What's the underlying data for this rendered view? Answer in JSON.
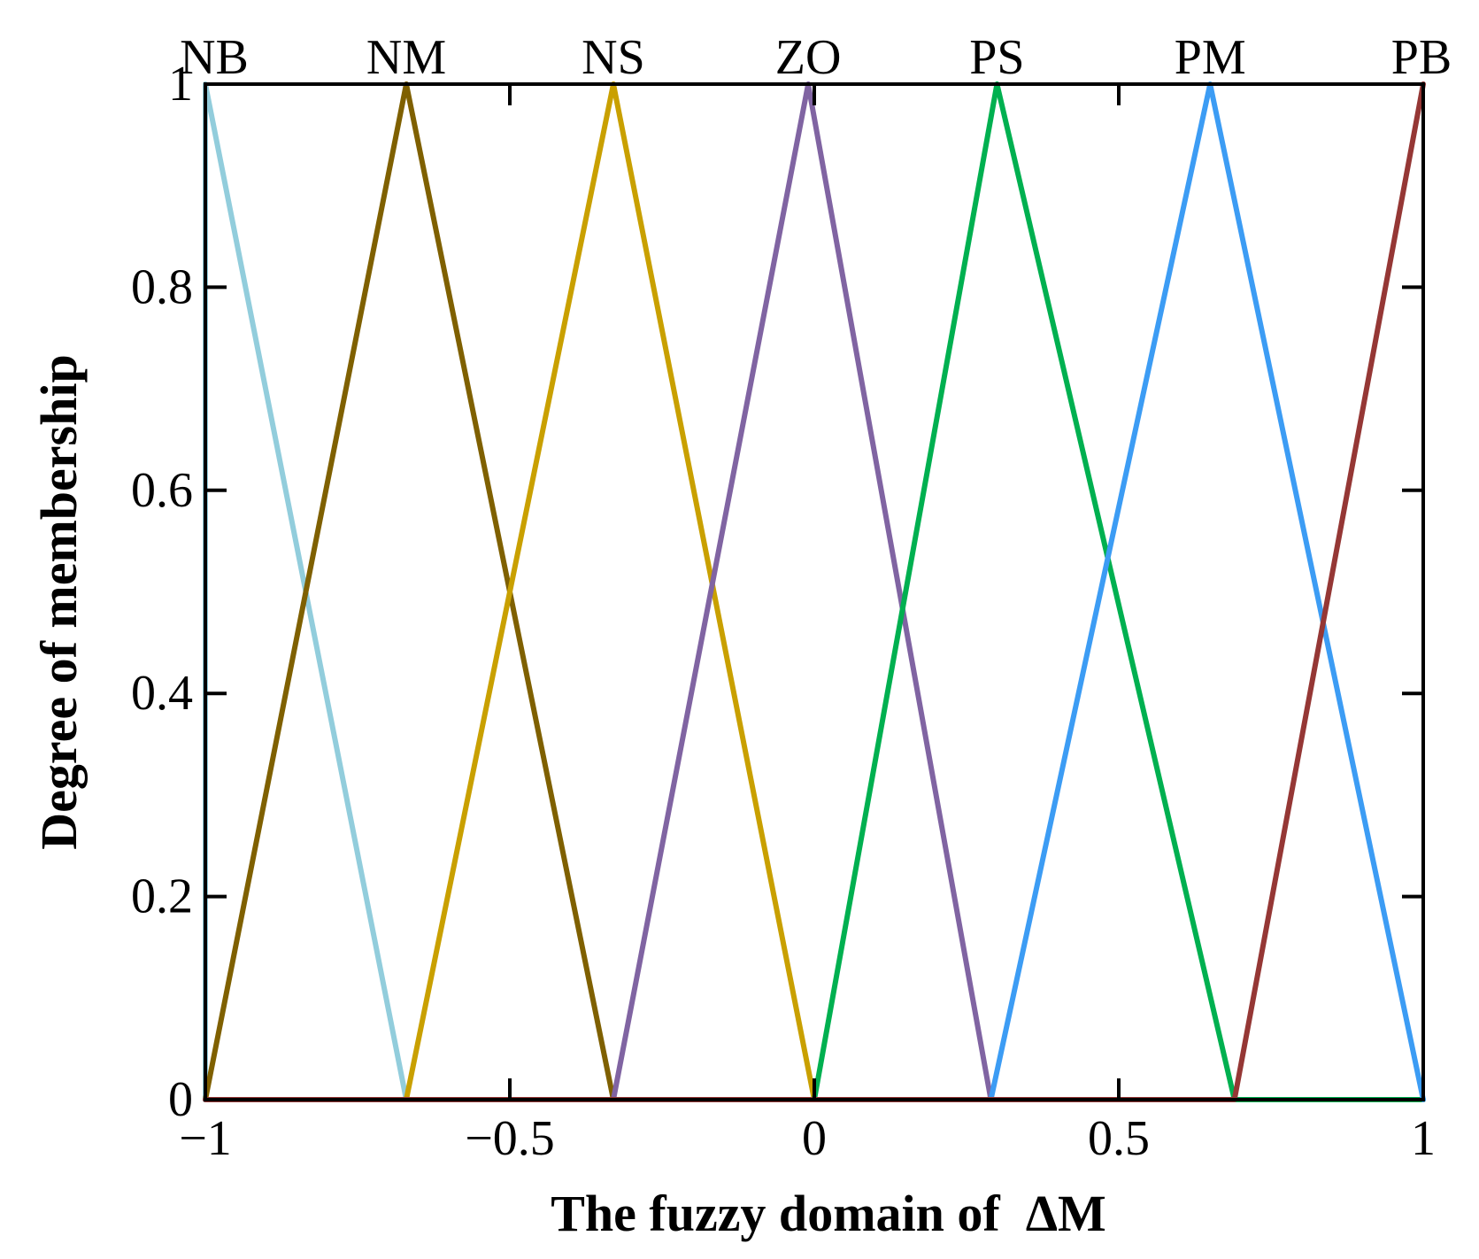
{
  "chart_data": {
    "type": "line",
    "xlabel": "The fuzzy domain of  ΔM",
    "ylabel": "Degree of membership",
    "xlim": [
      -1,
      1
    ],
    "ylim": [
      0,
      1
    ],
    "xticks": [
      -1,
      -0.5,
      0,
      0.5,
      1
    ],
    "xtick_labels": [
      "−1",
      "−0.5",
      "0",
      "0.5",
      "1"
    ],
    "yticks": [
      0,
      0.2,
      0.4,
      0.6,
      0.8,
      1
    ],
    "ytick_labels": [
      "0",
      "0.2",
      "0.4",
      "0.6",
      "0.8",
      "1"
    ],
    "grid": false,
    "series": [
      {
        "name": "NB",
        "color": "#92cddc",
        "x": [
          -1,
          -1,
          -0.67,
          1
        ],
        "y": [
          0,
          1,
          0,
          0
        ]
      },
      {
        "name": "NM",
        "color": "#7f6000",
        "x": [
          -1,
          -0.67,
          -0.33,
          1
        ],
        "y": [
          0,
          1,
          0,
          0
        ]
      },
      {
        "name": "NS",
        "color": "#c9a000",
        "x": [
          -1,
          -0.67,
          -0.33,
          0,
          1
        ],
        "y": [
          0,
          0,
          1,
          0,
          0
        ]
      },
      {
        "name": "ZO",
        "color": "#8064a2",
        "x": [
          -1,
          -0.33,
          -0.01,
          0.29,
          1
        ],
        "y": [
          0,
          0,
          1,
          0,
          0
        ]
      },
      {
        "name": "PS",
        "color": "#00b050",
        "x": [
          -1,
          0,
          0.3,
          0.69,
          1
        ],
        "y": [
          0,
          0,
          1,
          0,
          0
        ]
      },
      {
        "name": "PM",
        "color": "#3c9cf4",
        "x": [
          -1,
          0.29,
          0.65,
          1
        ],
        "y": [
          0,
          0,
          1,
          0
        ]
      },
      {
        "name": "PB",
        "color": "#953735",
        "x": [
          -1,
          0.69,
          1
        ],
        "y": [
          0,
          0,
          1
        ]
      }
    ]
  }
}
